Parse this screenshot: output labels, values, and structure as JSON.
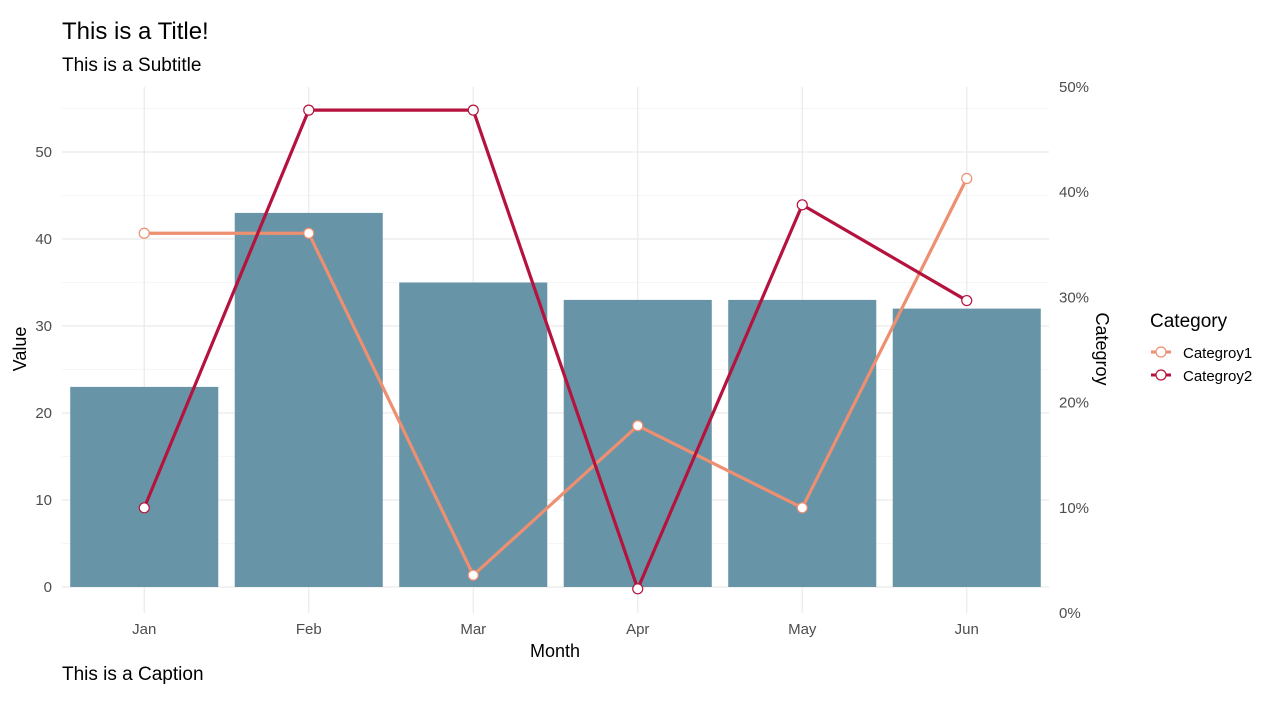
{
  "chart_data": {
    "type": "bar",
    "title": "This is a Title!",
    "subtitle": "This is a Subtitle",
    "caption": "This is a Caption",
    "xlabel": "Month",
    "ylabel": "Value",
    "y2label": "Categroy",
    "categories": [
      "Jan",
      "Feb",
      "Mar",
      "Apr",
      "May",
      "Jun"
    ],
    "ylim": [
      0,
      57.5
    ],
    "y_ticks": [
      0,
      10,
      20,
      30,
      40,
      50
    ],
    "y_tick_labels": [
      "0",
      "10",
      "20",
      "30",
      "40",
      "50"
    ],
    "y2lim": [
      0,
      0.5
    ],
    "y2_ticks": [
      0,
      0.1,
      0.2,
      0.3,
      0.4,
      0.5
    ],
    "y2_tick_labels": [
      "0%",
      "10%",
      "20%",
      "30%",
      "40%",
      "50%"
    ],
    "grid": true,
    "bars": {
      "name": "Value",
      "color": "#6794a7",
      "values": [
        23,
        43,
        35,
        33,
        33,
        32
      ]
    },
    "series": [
      {
        "name": "Categroy1",
        "color": "#ee8f71",
        "axis": "secondary",
        "values": [
          0.361,
          0.361,
          0.036,
          0.178,
          0.1,
          0.413
        ]
      },
      {
        "name": "Categroy2",
        "color": "#b5133d",
        "axis": "secondary",
        "values": [
          0.1,
          0.478,
          0.478,
          0.023,
          0.388,
          0.297
        ]
      }
    ],
    "legend": {
      "title": "Category",
      "position": "right"
    }
  }
}
